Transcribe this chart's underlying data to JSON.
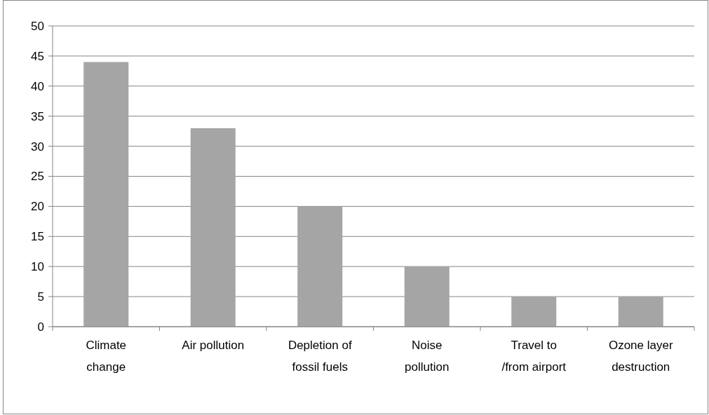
{
  "chart_data": {
    "type": "bar",
    "categories": [
      "Climate\nchange",
      "Air pollution",
      "Depletion of\nfossil fuels",
      "Noise\npollution",
      "Travel to\n/from airport",
      "Ozone layer\ndestruction"
    ],
    "values": [
      44,
      33,
      20,
      10,
      5,
      5
    ],
    "color": "#a5a5a5",
    "ylim": [
      0,
      50
    ],
    "yticks": [
      0,
      5,
      10,
      15,
      20,
      25,
      30,
      35,
      40,
      45,
      50
    ],
    "grid": "y"
  }
}
